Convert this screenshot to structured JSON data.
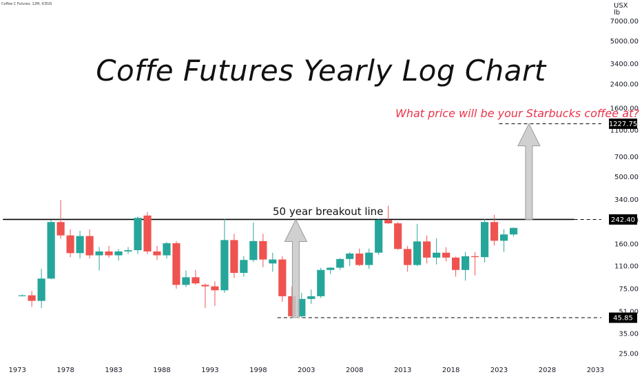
{
  "header": {
    "symbol": "Coffee C Futures, 12M, ICEUS",
    "currency_line1": "USX",
    "currency_line2": "lb"
  },
  "annotations": {
    "title": "Coffe Futures Yearly Log Chart",
    "question": "What price will be your Starbucks coffee at?",
    "breakout_label": "50 year breakout line"
  },
  "colors": {
    "up": "#26a69a",
    "down": "#ef5350",
    "question": "#e8334a",
    "arrow": "#c8c8c8",
    "line": "#000000"
  },
  "chart_data": {
    "type": "candlestick",
    "title": "Coffe Futures Yearly Log Chart",
    "scale": "log",
    "x_ticks": [
      1973,
      1978,
      1983,
      1988,
      1993,
      1998,
      2003,
      2008,
      2013,
      2018,
      2023,
      2028,
      2033
    ],
    "y_ticks": [
      7000,
      5000,
      3400,
      2400,
      1600,
      1100,
      700,
      500,
      340,
      240,
      160,
      110,
      75,
      51,
      35,
      25
    ],
    "y_tick_labels": [
      "7000.00",
      "5000.00",
      "3400.00",
      "2400.00",
      "1600.00",
      "1100.00",
      "700.00",
      "500.00",
      "340.00",
      "240.00",
      "160.00",
      "110.00",
      "75.00",
      "51.00",
      "35.00",
      "25.00"
    ],
    "xlim": [
      1971.2,
      2034.4
    ],
    "ylim": [
      22.5,
      10000
    ],
    "price_labels": [
      {
        "text": "1227.75",
        "value": 1227.75
      },
      {
        "text": "242.40",
        "value": 242.4
      },
      {
        "text": "45.85",
        "value": 45.85
      }
    ],
    "horizontal_lines": [
      {
        "name": "50 year breakout line",
        "value": 242.4,
        "x_from": 1971.5,
        "x_to": 2030.8,
        "style": "solid"
      },
      {
        "value": 242.4,
        "x_from": 2030.8,
        "x_to": 2033.6,
        "style": "dashed"
      },
      {
        "value": 1227.75,
        "x_from": 2023.0,
        "x_to": 2033.6,
        "style": "dashed"
      },
      {
        "value": 45.85,
        "x_from": 2000.0,
        "x_to": 2033.6,
        "style": "dashed"
      }
    ],
    "arrows": [
      {
        "x": 2001.9,
        "from": 45.85,
        "to": 242.4
      },
      {
        "x": 2026.1,
        "from": 242.4,
        "to": 1227.75
      }
    ],
    "candles": [
      {
        "year": 1973,
        "open": 67,
        "high": 68,
        "low": 66,
        "close": 67
      },
      {
        "year": 1974,
        "open": 67,
        "high": 72,
        "low": 55,
        "close": 61
      },
      {
        "year": 1975,
        "open": 61,
        "high": 105,
        "low": 54,
        "close": 89
      },
      {
        "year": 1976,
        "open": 89,
        "high": 240,
        "low": 88,
        "close": 232
      },
      {
        "year": 1977,
        "open": 232,
        "high": 337,
        "low": 175,
        "close": 185
      },
      {
        "year": 1978,
        "open": 185,
        "high": 205,
        "low": 128,
        "close": 137
      },
      {
        "year": 1979,
        "open": 137,
        "high": 200,
        "low": 125,
        "close": 183
      },
      {
        "year": 1980,
        "open": 183,
        "high": 205,
        "low": 125,
        "close": 132
      },
      {
        "year": 1981,
        "open": 132,
        "high": 152,
        "low": 102,
        "close": 141
      },
      {
        "year": 1982,
        "open": 141,
        "high": 155,
        "low": 127,
        "close": 132
      },
      {
        "year": 1983,
        "open": 132,
        "high": 147,
        "low": 121,
        "close": 141
      },
      {
        "year": 1984,
        "open": 141,
        "high": 152,
        "low": 135,
        "close": 144
      },
      {
        "year": 1985,
        "open": 144,
        "high": 255,
        "low": 135,
        "close": 249
      },
      {
        "year": 1986,
        "open": 259,
        "high": 275,
        "low": 135,
        "close": 141
      },
      {
        "year": 1987,
        "open": 141,
        "high": 155,
        "low": 122,
        "close": 132
      },
      {
        "year": 1988,
        "open": 132,
        "high": 165,
        "low": 125,
        "close": 162
      },
      {
        "year": 1989,
        "open": 162,
        "high": 168,
        "low": 75,
        "close": 80
      },
      {
        "year": 1990,
        "open": 80,
        "high": 102,
        "low": 77,
        "close": 91
      },
      {
        "year": 1991,
        "open": 91,
        "high": 103,
        "low": 80,
        "close": 82
      },
      {
        "year": 1992,
        "open": 80,
        "high": 82,
        "low": 54,
        "close": 78
      },
      {
        "year": 1993,
        "open": 78,
        "high": 85,
        "low": 56,
        "close": 73
      },
      {
        "year": 1994,
        "open": 73,
        "high": 245,
        "low": 70,
        "close": 171
      },
      {
        "year": 1995,
        "open": 171,
        "high": 190,
        "low": 90,
        "close": 98
      },
      {
        "year": 1996,
        "open": 98,
        "high": 130,
        "low": 92,
        "close": 122
      },
      {
        "year": 1997,
        "open": 122,
        "high": 230,
        "low": 118,
        "close": 168
      },
      {
        "year": 1998,
        "open": 168,
        "high": 190,
        "low": 108,
        "close": 123
      },
      {
        "year": 1999,
        "open": 115,
        "high": 138,
        "low": 100,
        "close": 123
      },
      {
        "year": 2000,
        "open": 123,
        "high": 130,
        "low": 60,
        "close": 66
      },
      {
        "year": 2001,
        "open": 66,
        "high": 78,
        "low": 45.85,
        "close": 47
      },
      {
        "year": 2002,
        "open": 47,
        "high": 70,
        "low": 45.85,
        "close": 63
      },
      {
        "year": 2003,
        "open": 63,
        "high": 74,
        "low": 58,
        "close": 66
      },
      {
        "year": 2004,
        "open": 66,
        "high": 107,
        "low": 64,
        "close": 103
      },
      {
        "year": 2005,
        "open": 103,
        "high": 108,
        "low": 96,
        "close": 107
      },
      {
        "year": 2006,
        "open": 107,
        "high": 126,
        "low": 103,
        "close": 124
      },
      {
        "year": 2007,
        "open": 124,
        "high": 139,
        "low": 110,
        "close": 136
      },
      {
        "year": 2008,
        "open": 136,
        "high": 148,
        "low": 110,
        "close": 112
      },
      {
        "year": 2009,
        "open": 112,
        "high": 148,
        "low": 105,
        "close": 138
      },
      {
        "year": 2010,
        "open": 138,
        "high": 245,
        "low": 133,
        "close": 241
      },
      {
        "year": 2011,
        "open": 240,
        "high": 306,
        "low": 225,
        "close": 227
      },
      {
        "year": 2012,
        "open": 227,
        "high": 232,
        "low": 145,
        "close": 147
      },
      {
        "year": 2013,
        "open": 147,
        "high": 155,
        "low": 100,
        "close": 112
      },
      {
        "year": 2014,
        "open": 112,
        "high": 225,
        "low": 110,
        "close": 167
      },
      {
        "year": 2015,
        "open": 167,
        "high": 185,
        "low": 115,
        "close": 127
      },
      {
        "year": 2016,
        "open": 127,
        "high": 176,
        "low": 113,
        "close": 138
      },
      {
        "year": 2017,
        "open": 138,
        "high": 151,
        "low": 119,
        "close": 127
      },
      {
        "year": 2018,
        "open": 127,
        "high": 129,
        "low": 92,
        "close": 103
      },
      {
        "year": 2019,
        "open": 103,
        "high": 140,
        "low": 86,
        "close": 130
      },
      {
        "year": 2020,
        "open": 130,
        "high": 139,
        "low": 94,
        "close": 128
      },
      {
        "year": 2021,
        "open": 128,
        "high": 245,
        "low": 117,
        "close": 232
      },
      {
        "year": 2022,
        "open": 232,
        "high": 262,
        "low": 156,
        "close": 169
      },
      {
        "year": 2023,
        "open": 169,
        "high": 205,
        "low": 140,
        "close": 188
      },
      {
        "year": 2024,
        "open": 188,
        "high": 212,
        "low": 182,
        "close": 210
      }
    ]
  }
}
